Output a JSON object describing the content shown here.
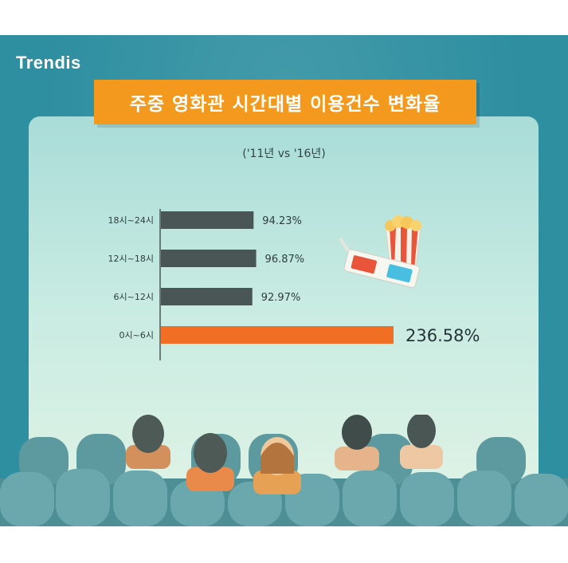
{
  "logo": "Trendis",
  "title": "주중 영화관 시간대별 이용건수 변화율",
  "subtitle": "('11년 vs '16년)",
  "colors": {
    "bar_default": "#4a5656",
    "bar_highlight": "#f06f25",
    "title_bg": "#f39a1e",
    "frame": "#2e8fa0"
  },
  "icons": [
    "popcorn-icon",
    "3d-glasses-icon",
    "audience-illustration"
  ],
  "chart_data": {
    "type": "bar",
    "orientation": "horizontal",
    "title": "주중 영화관 시간대별 이용건수 변화율",
    "subtitle": "('11년 vs '16년)",
    "categories": [
      "18시~24시",
      "12시~18시",
      "6시~12시",
      "0시~6시"
    ],
    "values": [
      94.23,
      96.87,
      92.97,
      236.58
    ],
    "value_labels": [
      "94.23%",
      "96.87%",
      "92.97%",
      "236.58%"
    ],
    "highlight_index": 3,
    "xlim": [
      0,
      250
    ],
    "grid": false,
    "legend": "none"
  }
}
